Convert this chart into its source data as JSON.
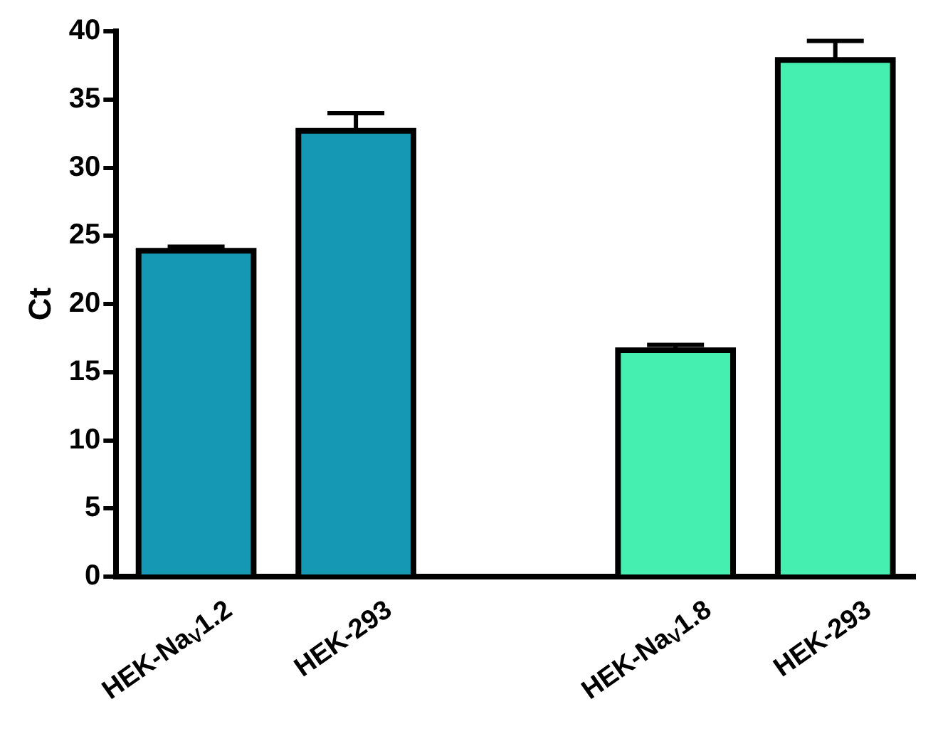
{
  "chart_data": {
    "type": "bar",
    "ylabel": "Ct",
    "categories": [
      "HEK-Na$_{V}$1.2",
      "HEK-293",
      null,
      "HEK-Na$_{V}$1.8",
      "HEK-293"
    ],
    "values": [
      23.9,
      32.7,
      null,
      16.6,
      37.9
    ],
    "errors": [
      0.3,
      1.3,
      null,
      0.4,
      1.4
    ],
    "colors": [
      "#1598b3",
      "#1598b3",
      null,
      "#45efb0",
      "#45efb0"
    ],
    "ylim": [
      0,
      40
    ],
    "yticks": [
      0,
      5,
      10,
      15,
      20,
      25,
      30,
      35,
      40
    ],
    "grid": false
  }
}
